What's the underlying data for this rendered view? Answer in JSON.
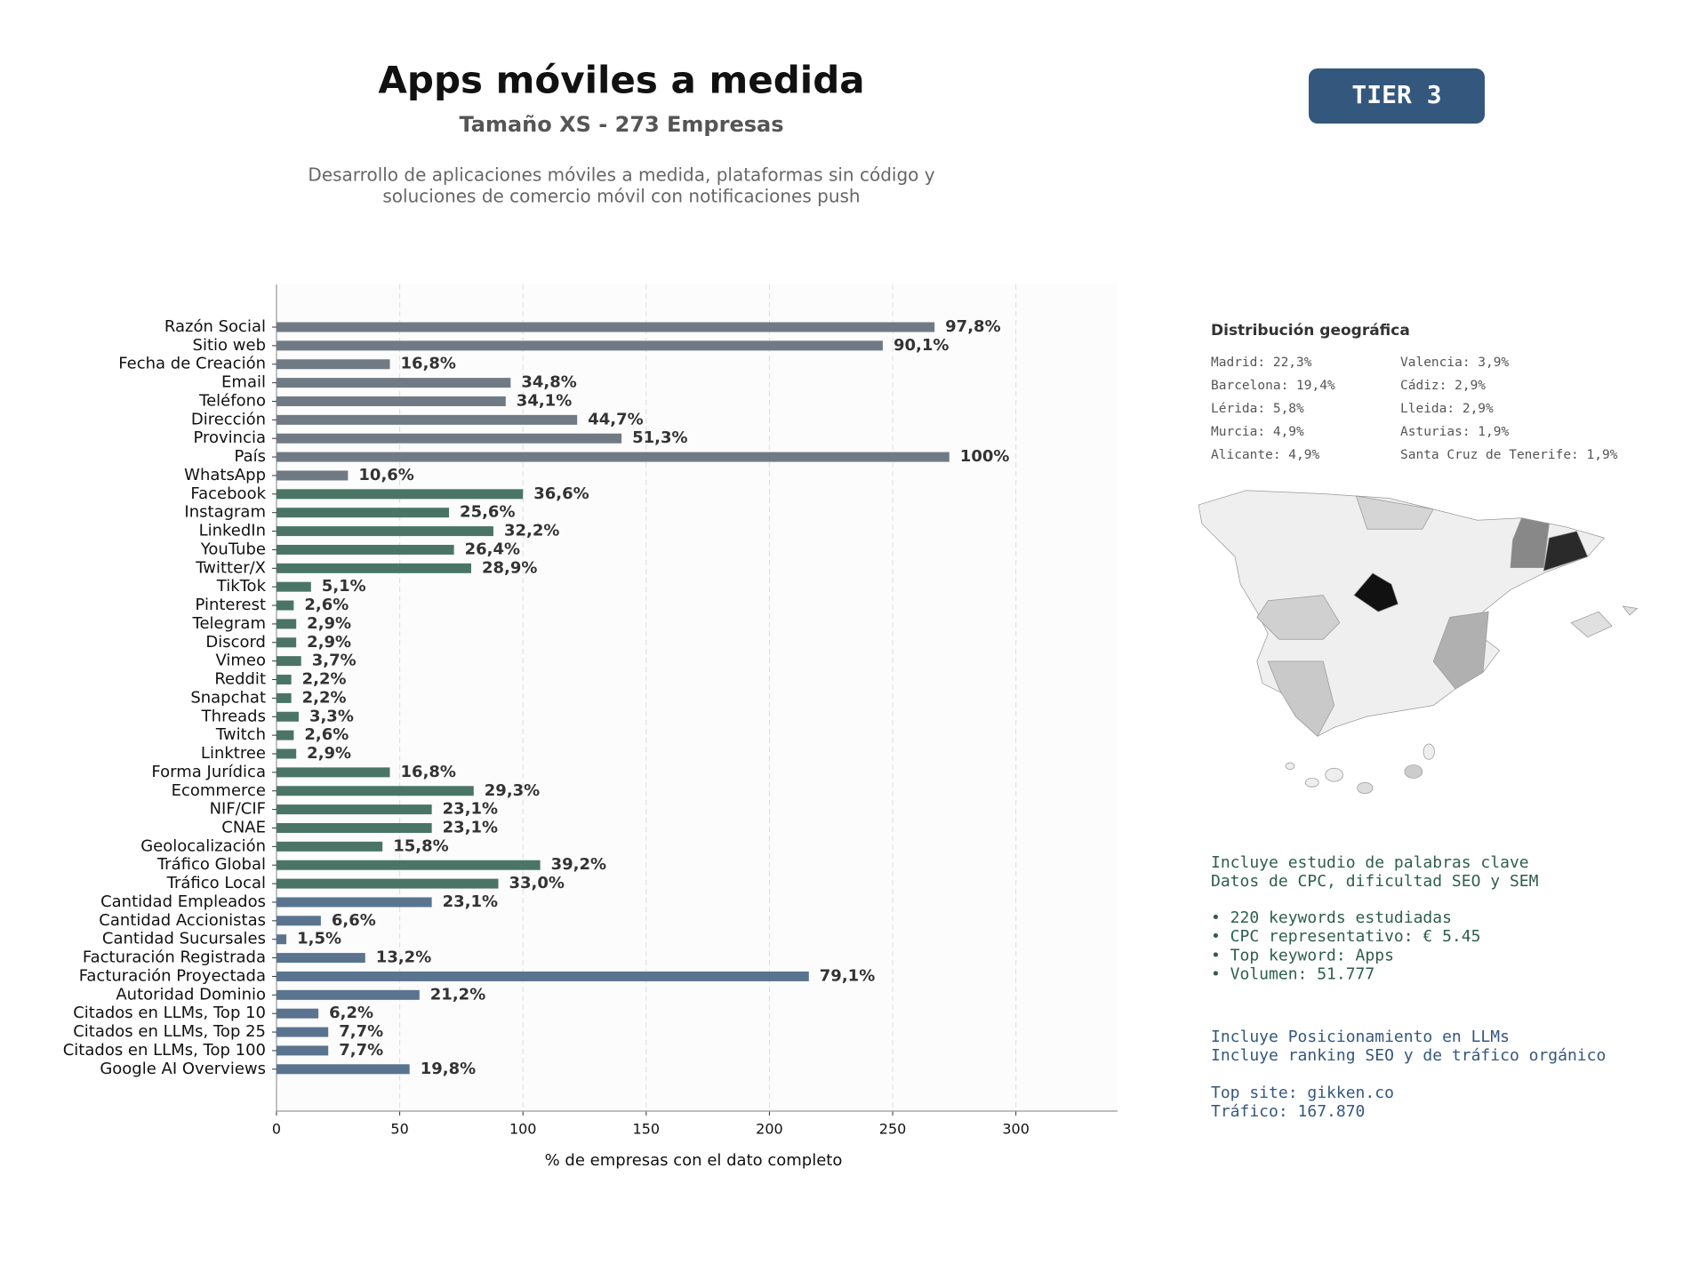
{
  "chart_data": {
    "type": "bar",
    "orientation": "horizontal",
    "title": "Apps móviles a medida",
    "subtitle": "Tamaño XS - 273 Empresas",
    "description": [
      "Desarrollo de aplicaciones móviles a medida, plataformas sin código y",
      "soluciones de comercio móvil con notificaciones push"
    ],
    "xlabel": "% de empresas con el dato completo",
    "categories": [
      "Razón Social",
      "Sitio web",
      "Fecha de Creación",
      "Email",
      "Teléfono",
      "Dirección",
      "Provincia",
      "País",
      "WhatsApp",
      "Facebook",
      "Instagram",
      "LinkedIn",
      "YouTube",
      "Twitter/X",
      "TikTok",
      "Pinterest",
      "Telegram",
      "Discord",
      "Vimeo",
      "Reddit",
      "Snapchat",
      "Threads",
      "Twitch",
      "Linktree",
      "Forma Jurídica",
      "Ecommerce",
      "NIF/CIF",
      "CNAE",
      "Geolocalización",
      "Tráfico Global",
      "Tráfico Local",
      "Cantidad Empleados",
      "Cantidad Accionistas",
      "Cantidad Sucursales",
      "Facturación Registrada",
      "Facturación Proyectada",
      "Autoridad Dominio",
      "Citados en LLMs, Top 10",
      "Citados en LLMs, Top 25",
      "Citados en LLMs, Top 100",
      "Google AI Overviews"
    ],
    "values": [
      267,
      246,
      46,
      95,
      93,
      122,
      140,
      273,
      29,
      100,
      70,
      88,
      72,
      79,
      14,
      7,
      8,
      8,
      10,
      6,
      6,
      9,
      7,
      8,
      46,
      80,
      63,
      63,
      43,
      107,
      90,
      63,
      18,
      4,
      36,
      216,
      58,
      17,
      21,
      21,
      54
    ],
    "value_labels": [
      "97,8%",
      "90,1%",
      "16,8%",
      "34,8%",
      "34,1%",
      "44,7%",
      "51,3%",
      "100%",
      "10,6%",
      "36,6%",
      "25,6%",
      "32,2%",
      "26,4%",
      "28,9%",
      "5,1%",
      "2,6%",
      "2,9%",
      "2,9%",
      "3,7%",
      "2,2%",
      "2,2%",
      "3,3%",
      "2,6%",
      "2,9%",
      "16,8%",
      "29,3%",
      "23,1%",
      "23,1%",
      "15,8%",
      "39,2%",
      "33,0%",
      "23,1%",
      "6,6%",
      "1,5%",
      "13,2%",
      "79,1%",
      "21,2%",
      "6,2%",
      "7,7%",
      "7,7%",
      "19,8%"
    ],
    "colors": [
      "#6f7a85",
      "#6f7a85",
      "#6f7a85",
      "#6f7a85",
      "#6f7a85",
      "#6f7a85",
      "#6f7a85",
      "#6f7a85",
      "#6f7a85",
      "#4a7566",
      "#4a7566",
      "#4a7566",
      "#4a7566",
      "#4a7566",
      "#4a7566",
      "#4a7566",
      "#4a7566",
      "#4a7566",
      "#4a7566",
      "#4a7566",
      "#4a7566",
      "#4a7566",
      "#4a7566",
      "#4a7566",
      "#4a7566",
      "#4a7566",
      "#4a7566",
      "#4a7566",
      "#4a7566",
      "#4a7566",
      "#4a7566",
      "#5a7490",
      "#5a7490",
      "#5a7490",
      "#5a7490",
      "#5a7490",
      "#5a7490",
      "#5a7490",
      "#5a7490",
      "#5a7490",
      "#5a7490"
    ],
    "xlim": [
      0,
      341.25
    ],
    "xticks": [
      0,
      50,
      100,
      150,
      200,
      250,
      300
    ],
    "grid": true
  },
  "badge": "TIER 3",
  "geo": {
    "title": "Distribución geográfica",
    "items": [
      "Madrid: 22,3%",
      "Barcelona: 19,4%",
      "Lérida: 5,8%",
      "Murcia: 4,9%",
      "Alicante: 4,9%",
      "Valencia: 3,9%",
      "Cádiz: 2,9%",
      "Lleida: 2,9%",
      "Asturias: 1,9%",
      "Santa Cruz de Tenerife: 1,9%"
    ]
  },
  "keywords": [
    [
      "Incluye estudio de palabras clave",
      "Datos de CPC, dificultad SEO y SEM"
    ],
    [
      "• 220 keywords estudiadas",
      "• CPC representativo: € 5.45",
      "• Top keyword: Apps",
      "• Volumen: 51.777"
    ]
  ],
  "llm": [
    [
      "Incluye Posicionamiento en LLMs",
      "Incluye ranking SEO y de tráfico orgánico"
    ],
    [
      "Top site: gikken.co",
      "Tráfico: 167.870"
    ]
  ]
}
